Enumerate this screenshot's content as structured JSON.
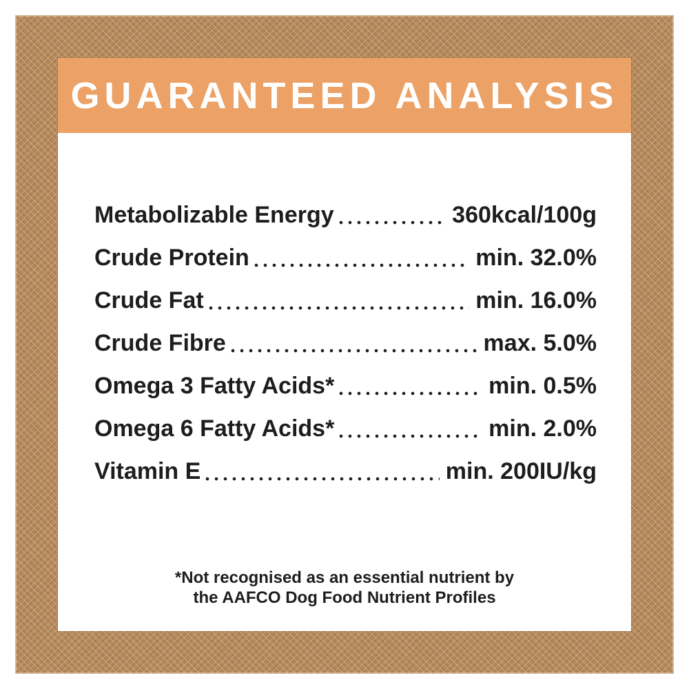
{
  "colors": {
    "page_background": "#ffffff",
    "texture_brown": "#b6895d",
    "card_background": "#ffffff",
    "accent_orange": "#eca266",
    "banner_text": "#ffffff",
    "ink": "#1d1d1b"
  },
  "header": {
    "title": "GUARANTEED ANALYSIS"
  },
  "analysis": {
    "rows": [
      {
        "name": "Metabolizable Energy",
        "value": "360kcal/100g"
      },
      {
        "name": "Crude Protein",
        "value": "min. 32.0%"
      },
      {
        "name": "Crude Fat",
        "value": "min. 16.0%"
      },
      {
        "name": "Crude Fibre",
        "value": "max. 5.0%"
      },
      {
        "name": "Omega 3 Fatty Acids*",
        "value": "min. 0.5%"
      },
      {
        "name": "Omega 6 Fatty Acids*",
        "value": "min. 2.0%"
      },
      {
        "name": "Vitamin E",
        "value": "min. 200IU/kg"
      }
    ]
  },
  "footnote": {
    "line1": "*Not recognised as an essential nutrient by",
    "line2": "the AAFCO Dog Food Nutrient Profiles"
  }
}
